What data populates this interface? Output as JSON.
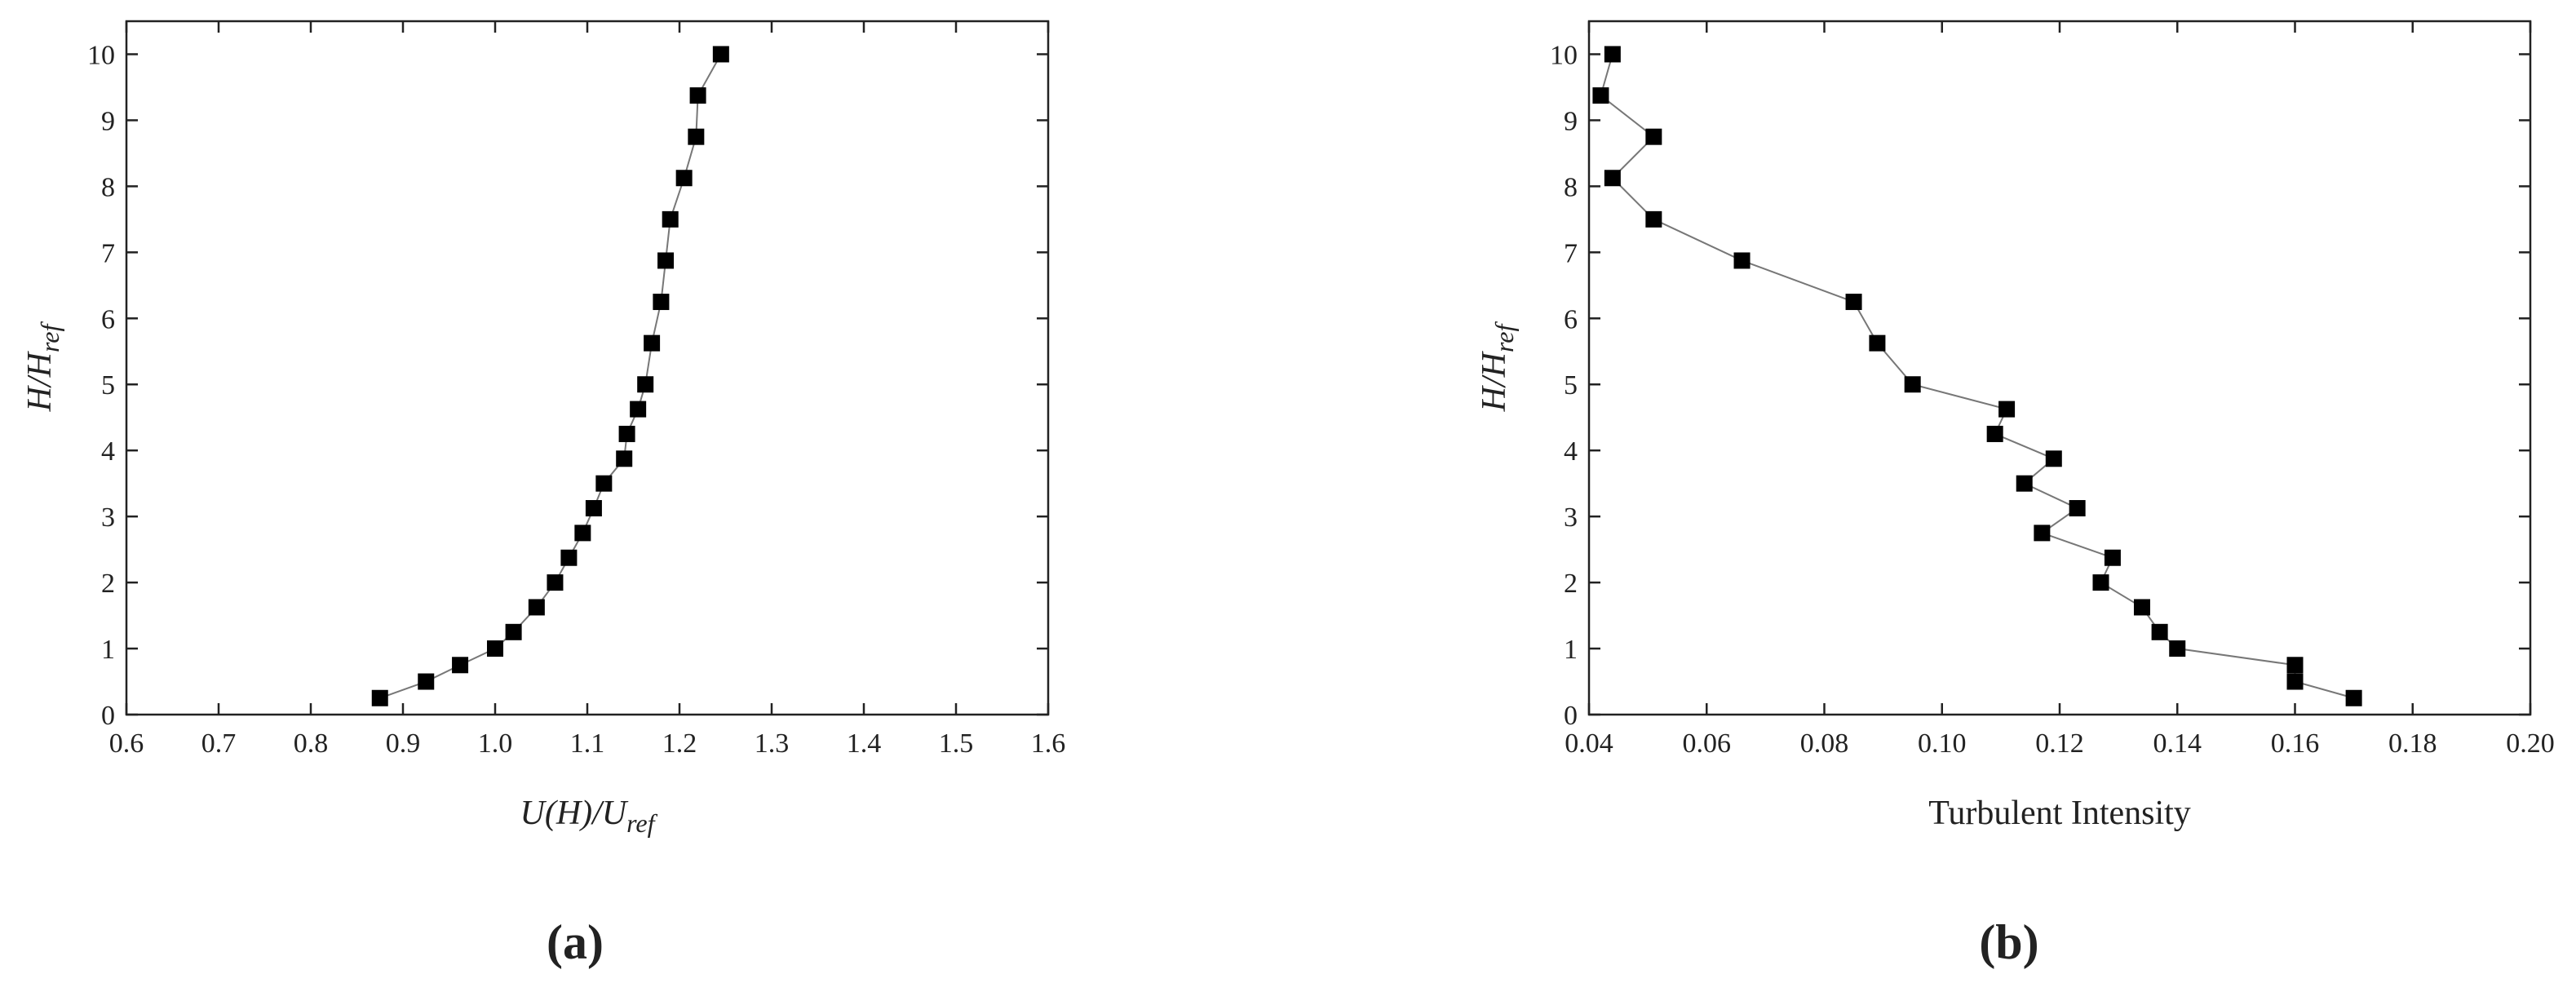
{
  "charts": [
    {
      "type": "line",
      "panel_label": "(a)",
      "xlabel": "U(H)/U",
      "xlabel_sub": "ref",
      "ylabel": "H/H",
      "ylabel_sub": "ref",
      "xlim": [
        0.6,
        1.6
      ],
      "xticks": [
        0.6,
        0.7,
        0.8,
        0.9,
        {
          "value": 1,
          "label": "1.0"
        },
        1.1,
        1.2,
        1.3,
        1.4,
        1.5,
        1.6
      ],
      "ylim": [
        0,
        10.5
      ],
      "yticks": [
        0,
        1,
        2,
        3,
        4,
        5,
        6,
        7,
        8,
        9,
        10
      ],
      "x": [
        0.875,
        0.925,
        0.962,
        1.0,
        1.02,
        1.045,
        1.065,
        1.08,
        1.095,
        1.107,
        1.118,
        1.14,
        1.143,
        1.155,
        1.163,
        1.17,
        1.18,
        1.185,
        1.19,
        1.205,
        1.218,
        1.22,
        1.245
      ],
      "series": [
        {
          "color": "#000000",
          "line_color": "#777777",
          "values": [
            0.25,
            0.5,
            0.75,
            1.0,
            1.25,
            1.625,
            2.0,
            2.375,
            2.75,
            3.125,
            3.5,
            3.875,
            4.25,
            4.625,
            5.0,
            5.625,
            6.25,
            6.875,
            7.5,
            8.125,
            8.75,
            9.375,
            10.0
          ]
        }
      ]
    },
    {
      "type": "line",
      "panel_label": "(b)",
      "xlabel": "Turbulent Intensity",
      "ylabel": "H/H",
      "ylabel_sub": "ref",
      "xlim": [
        0.04,
        0.2
      ],
      "xticks": [
        0.04,
        0.06,
        0.08,
        {
          "value": 0.1,
          "label": "0.10"
        },
        0.12,
        0.14,
        0.16,
        0.18,
        {
          "value": 0.2,
          "label": "0.20"
        }
      ],
      "ylim": [
        0,
        10.5
      ],
      "yticks": [
        0,
        1,
        2,
        3,
        4,
        5,
        6,
        7,
        8,
        9,
        10
      ],
      "x": [
        0.17,
        0.16,
        0.16,
        0.14,
        0.137,
        0.134,
        0.127,
        0.129,
        0.117,
        0.123,
        0.114,
        0.119,
        0.109,
        0.111,
        0.095,
        0.089,
        0.085,
        0.066,
        0.051,
        0.044,
        0.051,
        0.042,
        0.044
      ],
      "series": [
        {
          "color": "#000000",
          "line_color": "#777777",
          "values": [
            0.25,
            0.5,
            0.75,
            1.0,
            1.25,
            1.625,
            2.0,
            2.375,
            2.75,
            3.125,
            3.5,
            3.875,
            4.25,
            4.625,
            5.0,
            5.625,
            6.25,
            6.875,
            7.5,
            8.125,
            8.75,
            9.375,
            10.0
          ]
        }
      ]
    }
  ]
}
